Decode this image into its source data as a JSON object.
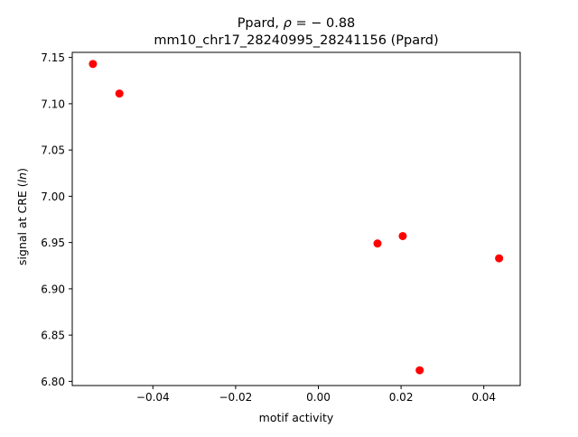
{
  "chart_data": {
    "type": "scatter",
    "title_line1_prefix": "Ppard, ",
    "title_line1_symbol": "ρ",
    "title_line1_suffix": " = − 0.88",
    "title_line2": "mm10_chr17_28240995_28241156 (Ppard)",
    "xlabel": "motif activity",
    "ylabel_prefix": "signal at CRE (",
    "ylabel_italic": "ln",
    "ylabel_suffix": ")",
    "xlim": [
      -0.0595,
      0.0488
    ],
    "ylim": [
      6.7955,
      7.1555
    ],
    "xticks": [
      -0.04,
      -0.02,
      0.0,
      0.02,
      0.04
    ],
    "xtick_labels": [
      "−0.04",
      "−0.02",
      "0.00",
      "0.02",
      "0.04"
    ],
    "yticks": [
      6.8,
      6.85,
      6.9,
      6.95,
      7.0,
      7.05,
      7.1,
      7.15
    ],
    "ytick_labels": [
      "6.80",
      "6.85",
      "6.90",
      "6.95",
      "7.00",
      "7.05",
      "7.10",
      "7.15"
    ],
    "grid": false,
    "legend": "none",
    "marker_color": "#ff0000",
    "points": [
      {
        "x": -0.0545,
        "y": 7.143
      },
      {
        "x": -0.0481,
        "y": 7.111
      },
      {
        "x": 0.0143,
        "y": 6.949
      },
      {
        "x": 0.0204,
        "y": 6.957
      },
      {
        "x": 0.0245,
        "y": 6.812
      },
      {
        "x": 0.0437,
        "y": 6.933
      }
    ]
  }
}
